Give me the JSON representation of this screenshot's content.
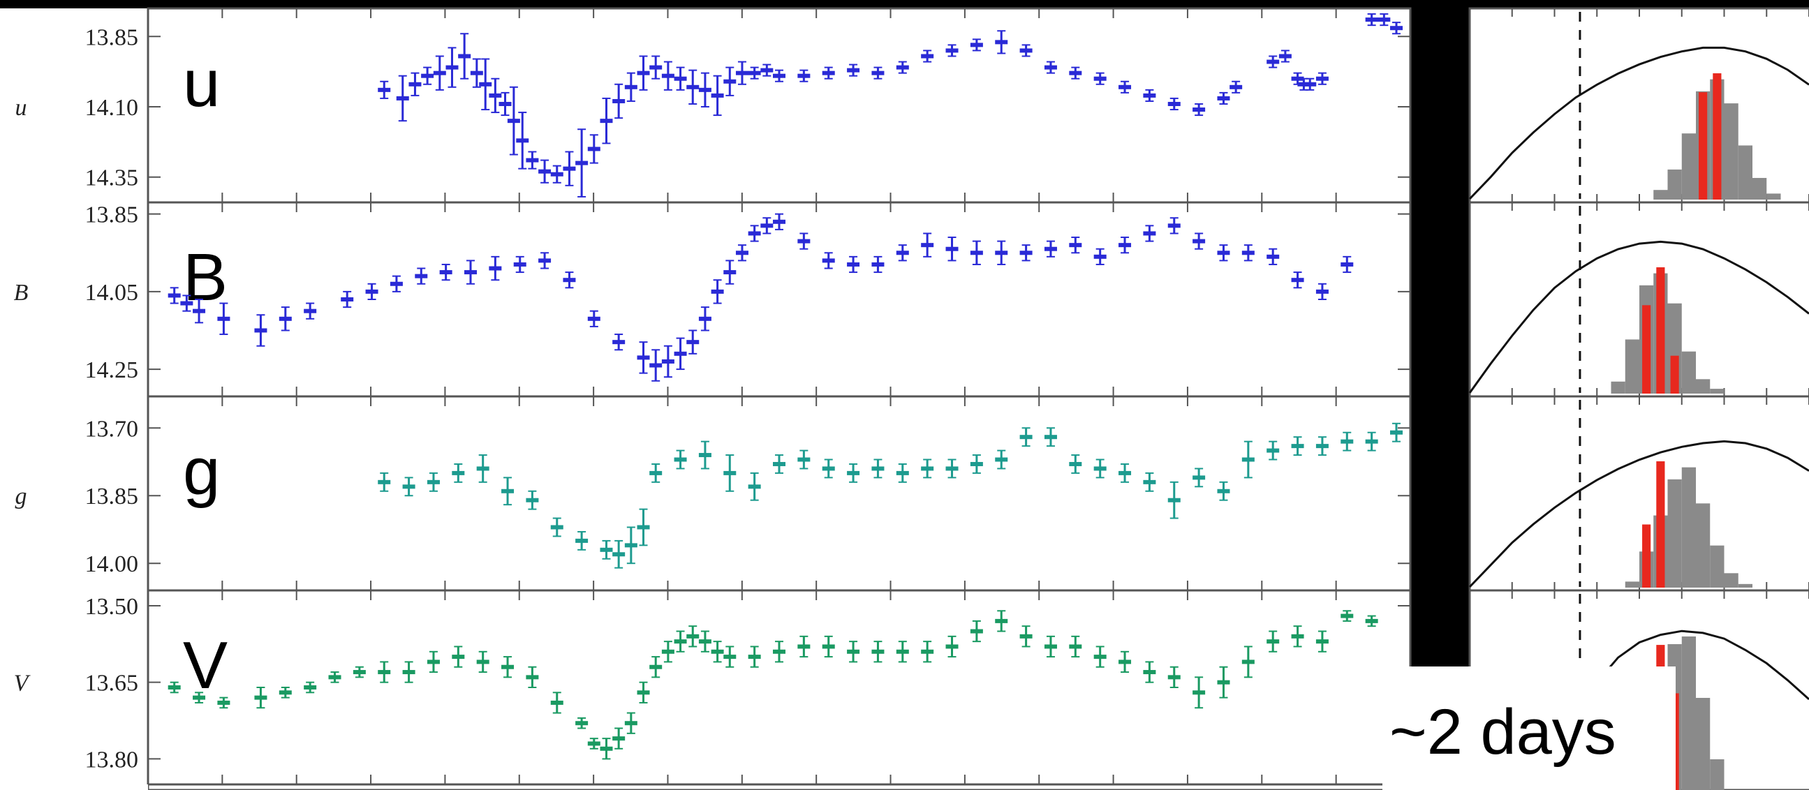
{
  "chart_data": {
    "type": "scatter",
    "panels": [
      {
        "band": "u",
        "label": "u",
        "ylim": [
          14.44,
          13.75
        ],
        "ticks": [
          "13.85",
          "14.10",
          "14.35"
        ],
        "tick_values": [
          13.85,
          14.1,
          14.35
        ],
        "color": "#2a2ad6",
        "series": [
          {
            "x": [
              0.18,
              0.195,
              0.205,
              0.215,
              0.225,
              0.235,
              0.245,
              0.255,
              0.262,
              0.27,
              0.278,
              0.285,
              0.292,
              0.3,
              0.31,
              0.32,
              0.33,
              0.34,
              0.35,
              0.36,
              0.37,
              0.38,
              0.39,
              0.4,
              0.41,
              0.42,
              0.43,
              0.44,
              0.45,
              0.46,
              0.47,
              0.48,
              0.49,
              0.5,
              0.52,
              0.54,
              0.56,
              0.58,
              0.6,
              0.62,
              0.64,
              0.66,
              0.68,
              0.7,
              0.72,
              0.74,
              0.76,
              0.78,
              0.8,
              0.82,
              0.84,
              0.86,
              0.87,
              0.9,
              0.91,
              0.92,
              0.925,
              0.93,
              0.94,
              0.98,
              0.99,
              1.0
            ],
            "y": [
              14.04,
              14.07,
              14.02,
              13.99,
              13.98,
              13.96,
              13.92,
              13.98,
              14.02,
              14.06,
              14.09,
              14.15,
              14.22,
              14.29,
              14.33,
              14.34,
              14.32,
              14.3,
              14.25,
              14.15,
              14.08,
              14.03,
              13.98,
              13.96,
              13.99,
              14.0,
              14.03,
              14.04,
              14.06,
              14.01,
              13.98,
              13.98,
              13.97,
              13.99,
              13.99,
              13.98,
              13.97,
              13.98,
              13.96,
              13.92,
              13.9,
              13.88,
              13.87,
              13.9,
              13.96,
              13.98,
              14.0,
              14.03,
              14.06,
              14.09,
              14.11,
              14.07,
              14.03,
              13.94,
              13.92,
              14.0,
              14.02,
              14.02,
              14.0,
              13.79,
              13.79,
              13.82
            ],
            "err": [
              0.03,
              0.08,
              0.04,
              0.03,
              0.06,
              0.07,
              0.08,
              0.05,
              0.09,
              0.06,
              0.04,
              0.12,
              0.1,
              0.03,
              0.04,
              0.03,
              0.06,
              0.12,
              0.05,
              0.08,
              0.06,
              0.05,
              0.06,
              0.04,
              0.05,
              0.04,
              0.06,
              0.06,
              0.07,
              0.05,
              0.04,
              0.02,
              0.02,
              0.02,
              0.02,
              0.02,
              0.02,
              0.02,
              0.02,
              0.02,
              0.02,
              0.02,
              0.04,
              0.02,
              0.02,
              0.02,
              0.02,
              0.02,
              0.02,
              0.02,
              0.02,
              0.02,
              0.02,
              0.02,
              0.02,
              0.02,
              0.02,
              0.02,
              0.02,
              0.02,
              0.02,
              0.02
            ]
          }
        ]
      },
      {
        "band": "B",
        "label": "B",
        "ylim": [
          14.32,
          13.82
        ],
        "ticks": [
          "13.85",
          "14.05",
          "14.25"
        ],
        "tick_values": [
          13.85,
          14.05,
          14.25
        ],
        "color": "#2a2ad6",
        "series": [
          {
            "x": [
              0.01,
              0.02,
              0.03,
              0.05,
              0.08,
              0.1,
              0.12,
              0.15,
              0.17,
              0.19,
              0.21,
              0.23,
              0.25,
              0.27,
              0.29,
              0.31,
              0.33,
              0.35,
              0.37,
              0.39,
              0.4,
              0.41,
              0.42,
              0.43,
              0.44,
              0.45,
              0.46,
              0.47,
              0.48,
              0.49,
              0.5,
              0.52,
              0.54,
              0.56,
              0.58,
              0.6,
              0.62,
              0.64,
              0.66,
              0.68,
              0.7,
              0.72,
              0.74,
              0.76,
              0.78,
              0.8,
              0.82,
              0.84,
              0.86,
              0.88,
              0.9,
              0.92,
              0.94,
              0.96
            ],
            "y": [
              14.06,
              14.08,
              14.1,
              14.12,
              14.15,
              14.12,
              14.1,
              14.07,
              14.05,
              14.03,
              14.01,
              14.0,
              14.0,
              13.99,
              13.98,
              13.97,
              14.02,
              14.12,
              14.18,
              14.22,
              14.24,
              14.23,
              14.21,
              14.18,
              14.12,
              14.05,
              14.0,
              13.95,
              13.9,
              13.88,
              13.87,
              13.92,
              13.97,
              13.98,
              13.98,
              13.95,
              13.93,
              13.94,
              13.95,
              13.95,
              13.95,
              13.94,
              13.93,
              13.96,
              13.93,
              13.9,
              13.88,
              13.92,
              13.95,
              13.95,
              13.96,
              14.02,
              14.05,
              13.98
            ],
            "err": [
              0.02,
              0.02,
              0.03,
              0.04,
              0.04,
              0.03,
              0.02,
              0.02,
              0.02,
              0.02,
              0.02,
              0.02,
              0.03,
              0.03,
              0.02,
              0.02,
              0.02,
              0.02,
              0.02,
              0.04,
              0.04,
              0.04,
              0.04,
              0.03,
              0.03,
              0.03,
              0.03,
              0.02,
              0.02,
              0.02,
              0.02,
              0.02,
              0.02,
              0.02,
              0.02,
              0.02,
              0.03,
              0.03,
              0.03,
              0.03,
              0.02,
              0.02,
              0.02,
              0.02,
              0.02,
              0.02,
              0.02,
              0.02,
              0.02,
              0.02,
              0.02,
              0.02,
              0.02,
              0.02
            ]
          }
        ]
      },
      {
        "band": "g",
        "label": "g",
        "ylim": [
          14.06,
          13.63
        ],
        "ticks": [
          "13.70",
          "13.85",
          "14.00"
        ],
        "tick_values": [
          13.7,
          13.85,
          14.0
        ],
        "color": "#1d9b8f",
        "series": [
          {
            "x": [
              0.18,
              0.2,
              0.22,
              0.24,
              0.26,
              0.28,
              0.3,
              0.32,
              0.34,
              0.36,
              0.37,
              0.38,
              0.39,
              0.4,
              0.42,
              0.44,
              0.46,
              0.48,
              0.5,
              0.52,
              0.54,
              0.56,
              0.58,
              0.6,
              0.62,
              0.64,
              0.66,
              0.68,
              0.7,
              0.72,
              0.74,
              0.76,
              0.78,
              0.8,
              0.82,
              0.84,
              0.86,
              0.88,
              0.9,
              0.92,
              0.94,
              0.96,
              0.98,
              1.0
            ],
            "y": [
              13.82,
              13.83,
              13.82,
              13.8,
              13.79,
              13.84,
              13.86,
              13.92,
              13.95,
              13.97,
              13.98,
              13.96,
              13.92,
              13.8,
              13.77,
              13.76,
              13.8,
              13.83,
              13.78,
              13.77,
              13.79,
              13.8,
              13.79,
              13.8,
              13.79,
              13.79,
              13.78,
              13.77,
              13.72,
              13.72,
              13.78,
              13.79,
              13.8,
              13.82,
              13.86,
              13.81,
              13.84,
              13.77,
              13.75,
              13.74,
              13.74,
              13.73,
              13.73,
              13.71
            ],
            "err": [
              0.02,
              0.02,
              0.02,
              0.02,
              0.03,
              0.03,
              0.02,
              0.02,
              0.02,
              0.02,
              0.03,
              0.04,
              0.04,
              0.02,
              0.02,
              0.03,
              0.04,
              0.03,
              0.02,
              0.02,
              0.02,
              0.02,
              0.02,
              0.02,
              0.02,
              0.02,
              0.02,
              0.02,
              0.02,
              0.02,
              0.02,
              0.02,
              0.02,
              0.02,
              0.04,
              0.02,
              0.02,
              0.04,
              0.02,
              0.02,
              0.02,
              0.02,
              0.02,
              0.02
            ]
          }
        ]
      },
      {
        "band": "V",
        "label": "V",
        "ylim": [
          13.85,
          13.47
        ],
        "ticks": [
          "13.50",
          "13.65",
          "13.80"
        ],
        "tick_values": [
          13.5,
          13.65,
          13.8
        ],
        "color": "#1a9a62",
        "series": [
          {
            "x": [
              0.01,
              0.03,
              0.05,
              0.08,
              0.1,
              0.12,
              0.14,
              0.16,
              0.18,
              0.2,
              0.22,
              0.24,
              0.26,
              0.28,
              0.3,
              0.32,
              0.34,
              0.35,
              0.36,
              0.37,
              0.38,
              0.39,
              0.4,
              0.41,
              0.42,
              0.43,
              0.44,
              0.45,
              0.46,
              0.48,
              0.5,
              0.52,
              0.54,
              0.56,
              0.58,
              0.6,
              0.62,
              0.64,
              0.66,
              0.68,
              0.7,
              0.72,
              0.74,
              0.76,
              0.78,
              0.8,
              0.82,
              0.84,
              0.86,
              0.88,
              0.9,
              0.92,
              0.94,
              0.96,
              0.98
            ],
            "y": [
              13.66,
              13.68,
              13.69,
              13.68,
              13.67,
              13.66,
              13.64,
              13.63,
              13.63,
              13.63,
              13.61,
              13.6,
              13.61,
              13.62,
              13.64,
              13.69,
              13.73,
              13.77,
              13.78,
              13.76,
              13.73,
              13.67,
              13.62,
              13.59,
              13.57,
              13.56,
              13.57,
              13.59,
              13.6,
              13.6,
              13.59,
              13.58,
              13.58,
              13.59,
              13.59,
              13.59,
              13.59,
              13.58,
              13.55,
              13.53,
              13.56,
              13.58,
              13.58,
              13.6,
              13.61,
              13.63,
              13.64,
              13.67,
              13.65,
              13.61,
              13.57,
              13.56,
              13.57,
              13.52,
              13.53
            ],
            "err": [
              0.01,
              0.01,
              0.01,
              0.02,
              0.01,
              0.01,
              0.01,
              0.01,
              0.02,
              0.02,
              0.02,
              0.02,
              0.02,
              0.02,
              0.02,
              0.02,
              0.01,
              0.01,
              0.02,
              0.02,
              0.02,
              0.02,
              0.02,
              0.02,
              0.02,
              0.02,
              0.02,
              0.02,
              0.02,
              0.02,
              0.02,
              0.02,
              0.02,
              0.02,
              0.02,
              0.02,
              0.02,
              0.02,
              0.02,
              0.02,
              0.02,
              0.02,
              0.02,
              0.02,
              0.02,
              0.02,
              0.02,
              0.03,
              0.03,
              0.03,
              0.02,
              0.02,
              0.02,
              0.01,
              0.01
            ]
          }
        ]
      }
    ]
  },
  "histograms": {
    "bins": 24,
    "panels": [
      {
        "curve": [
          0.0,
          0.12,
          0.25,
          0.36,
          0.46,
          0.55,
          0.62,
          0.68,
          0.73,
          0.77,
          0.8,
          0.82,
          0.82,
          0.8,
          0.76,
          0.7,
          0.62
        ],
        "gray": [
          0,
          0,
          0,
          0,
          0,
          0,
          0,
          0,
          0,
          0,
          0,
          0,
          0,
          0.08,
          0.25,
          0.55,
          0.9,
          1.0,
          0.8,
          0.45,
          0.18,
          0.05,
          0,
          0
        ],
        "red": [
          0,
          0,
          0,
          0,
          0,
          0,
          0,
          0,
          0,
          0,
          0,
          0,
          0,
          0,
          0,
          0,
          0.85,
          1.0,
          0,
          0,
          0,
          0,
          0,
          0
        ]
      },
      {
        "curve": [
          0.0,
          0.16,
          0.31,
          0.45,
          0.57,
          0.66,
          0.73,
          0.78,
          0.81,
          0.82,
          0.81,
          0.78,
          0.73,
          0.67,
          0.6,
          0.52,
          0.43
        ],
        "gray": [
          0,
          0,
          0,
          0,
          0,
          0,
          0,
          0,
          0,
          0,
          0.1,
          0.45,
          0.9,
          1.0,
          0.75,
          0.35,
          0.12,
          0.04,
          0,
          0,
          0,
          0,
          0,
          0
        ],
        "red": [
          0,
          0,
          0,
          0,
          0,
          0,
          0,
          0,
          0,
          0,
          0,
          0,
          0.7,
          1.0,
          0.3,
          0,
          0,
          0,
          0,
          0,
          0,
          0,
          0,
          0
        ]
      },
      {
        "curve": [
          0.0,
          0.12,
          0.24,
          0.34,
          0.43,
          0.51,
          0.58,
          0.64,
          0.69,
          0.73,
          0.76,
          0.78,
          0.79,
          0.78,
          0.75,
          0.7,
          0.63
        ],
        "gray": [
          0,
          0,
          0,
          0,
          0,
          0,
          0,
          0,
          0,
          0,
          0,
          0.05,
          0.3,
          0.6,
          0.9,
          1.0,
          0.7,
          0.35,
          0.12,
          0.03,
          0,
          0,
          0,
          0
        ],
        "red": [
          0,
          0,
          0,
          0,
          0,
          0,
          0,
          0,
          0,
          0,
          0,
          0,
          0.5,
          1.0,
          0,
          0,
          0,
          0,
          0,
          0,
          0,
          0,
          0,
          0
        ]
      },
      {
        "curve": [
          null,
          null,
          null,
          null,
          null,
          0.3,
          0.55,
          0.68,
          0.76,
          0.8,
          0.82,
          0.81,
          0.78,
          0.72,
          0.65,
          0.56,
          0.46
        ],
        "gray": [
          0,
          0,
          0,
          0,
          0,
          0,
          0,
          0,
          0,
          0,
          0,
          0,
          0.1,
          0.45,
          0.95,
          1.0,
          0.6,
          0.2,
          0,
          0,
          0,
          0,
          0,
          0
        ],
        "red": [
          0,
          0,
          0,
          0,
          0,
          0,
          0,
          0,
          0,
          0,
          0,
          0,
          0,
          0.9,
          0.6,
          0,
          0,
          0,
          0,
          0,
          0,
          0,
          0,
          0
        ]
      }
    ],
    "annotation": "~2 days"
  }
}
